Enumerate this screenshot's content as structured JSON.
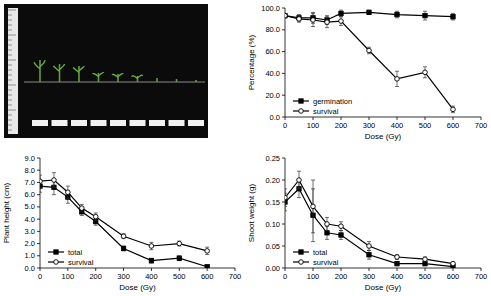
{
  "chart_data": [
    {
      "type": "line",
      "y_label": "Percentage (%)",
      "x_label": "Dose (Gy)",
      "x": [
        0,
        50,
        100,
        150,
        200,
        300,
        400,
        500,
        600
      ],
      "xlim": [
        0,
        700
      ],
      "xticks": [
        0,
        100,
        200,
        300,
        400,
        500,
        600,
        700
      ],
      "ylim": [
        0,
        100
      ],
      "yticks": [
        {
          "value": 0,
          "label": "0.0"
        },
        {
          "value": 20,
          "label": "20.0"
        },
        {
          "value": 40,
          "label": "40.0"
        },
        {
          "value": 60,
          "label": "60.0"
        },
        {
          "value": 80,
          "label": "80.0"
        },
        {
          "value": 100,
          "label": "100.0"
        }
      ],
      "legend": "lower left",
      "series": [
        {
          "name": "germination",
          "color": "#000000",
          "marker": "square",
          "line_style": "solid",
          "values": [
            93,
            91,
            91,
            89,
            95,
            96,
            94,
            93,
            92
          ],
          "errors": [
            2,
            3,
            5,
            4,
            3,
            2,
            3,
            4,
            3
          ]
        },
        {
          "name": "survival",
          "color": "#000000",
          "marker": "open-circle",
          "line_style": "solid",
          "values": [
            93,
            90,
            89,
            87,
            88,
            61,
            35,
            41,
            7
          ],
          "errors": [
            2,
            3,
            6,
            5,
            4,
            3,
            7,
            5,
            3
          ]
        }
      ]
    },
    {
      "type": "line",
      "y_label": "Plant height (cm)",
      "x_label": "Dose (Gy)",
      "x": [
        0,
        50,
        100,
        150,
        200,
        300,
        400,
        500,
        600
      ],
      "xlim": [
        0,
        700
      ],
      "xticks": [
        0,
        100,
        200,
        300,
        400,
        500,
        600,
        700
      ],
      "ylim": [
        0,
        9
      ],
      "yticks": [
        {
          "value": 0,
          "label": "0.0"
        },
        {
          "value": 1,
          "label": "1.0"
        },
        {
          "value": 2,
          "label": "2.0"
        },
        {
          "value": 3,
          "label": "3.0"
        },
        {
          "value": 4,
          "label": "4.0"
        },
        {
          "value": 5,
          "label": "5.0"
        },
        {
          "value": 6,
          "label": "6.0"
        },
        {
          "value": 7,
          "label": "7.0"
        },
        {
          "value": 8,
          "label": "8.0"
        },
        {
          "value": 9,
          "label": "9.0"
        }
      ],
      "legend": "lower left",
      "series": [
        {
          "name": "total",
          "color": "#000000",
          "marker": "square",
          "line_style": "solid",
          "values": [
            6.7,
            6.6,
            5.8,
            4.6,
            3.8,
            1.6,
            0.6,
            0.8,
            0.1
          ],
          "errors": [
            0.5,
            0.6,
            0.5,
            0.3,
            0.3,
            0.2,
            0.2,
            0.2,
            0.1
          ]
        },
        {
          "name": "survival",
          "color": "#000000",
          "marker": "open-circle",
          "line_style": "solid",
          "values": [
            7.1,
            7.2,
            6.2,
            4.9,
            4.2,
            2.6,
            1.8,
            2.0,
            1.4
          ],
          "errors": [
            0.5,
            0.6,
            0.5,
            0.3,
            0.3,
            0.2,
            0.3,
            0.2,
            0.3
          ]
        }
      ]
    },
    {
      "type": "line",
      "y_label": "Shoot weight (g)",
      "x_label": "Dose (Gy)",
      "x": [
        0,
        50,
        100,
        150,
        200,
        300,
        400,
        500,
        600
      ],
      "xlim": [
        0,
        700
      ],
      "xticks": [
        0,
        100,
        200,
        300,
        400,
        500,
        600,
        700
      ],
      "ylim": [
        0,
        0.25
      ],
      "yticks": [
        {
          "value": 0,
          "label": "0.00"
        },
        0.05,
        {
          "value": 0.1,
          "label": "0.10"
        },
        0.15,
        {
          "value": 0.2,
          "label": "0.20"
        },
        0.25
      ],
      "legend": "lower left",
      "series": [
        {
          "name": "total",
          "color": "#000000",
          "marker": "square",
          "line_style": "solid",
          "values": [
            0.15,
            0.18,
            0.12,
            0.08,
            0.075,
            0.03,
            0.01,
            0.01,
            0.003
          ],
          "errors": [
            0.02,
            0.02,
            0.06,
            0.015,
            0.01,
            0.01,
            0.005,
            0.005,
            0.002
          ]
        },
        {
          "name": "survival",
          "color": "#000000",
          "marker": "open-circle",
          "line_style": "solid",
          "values": [
            0.16,
            0.2,
            0.14,
            0.1,
            0.095,
            0.05,
            0.025,
            0.02,
            0.01
          ],
          "errors": [
            0.02,
            0.02,
            0.06,
            0.015,
            0.01,
            0.01,
            0.005,
            0.005,
            0.003
          ]
        }
      ]
    }
  ]
}
